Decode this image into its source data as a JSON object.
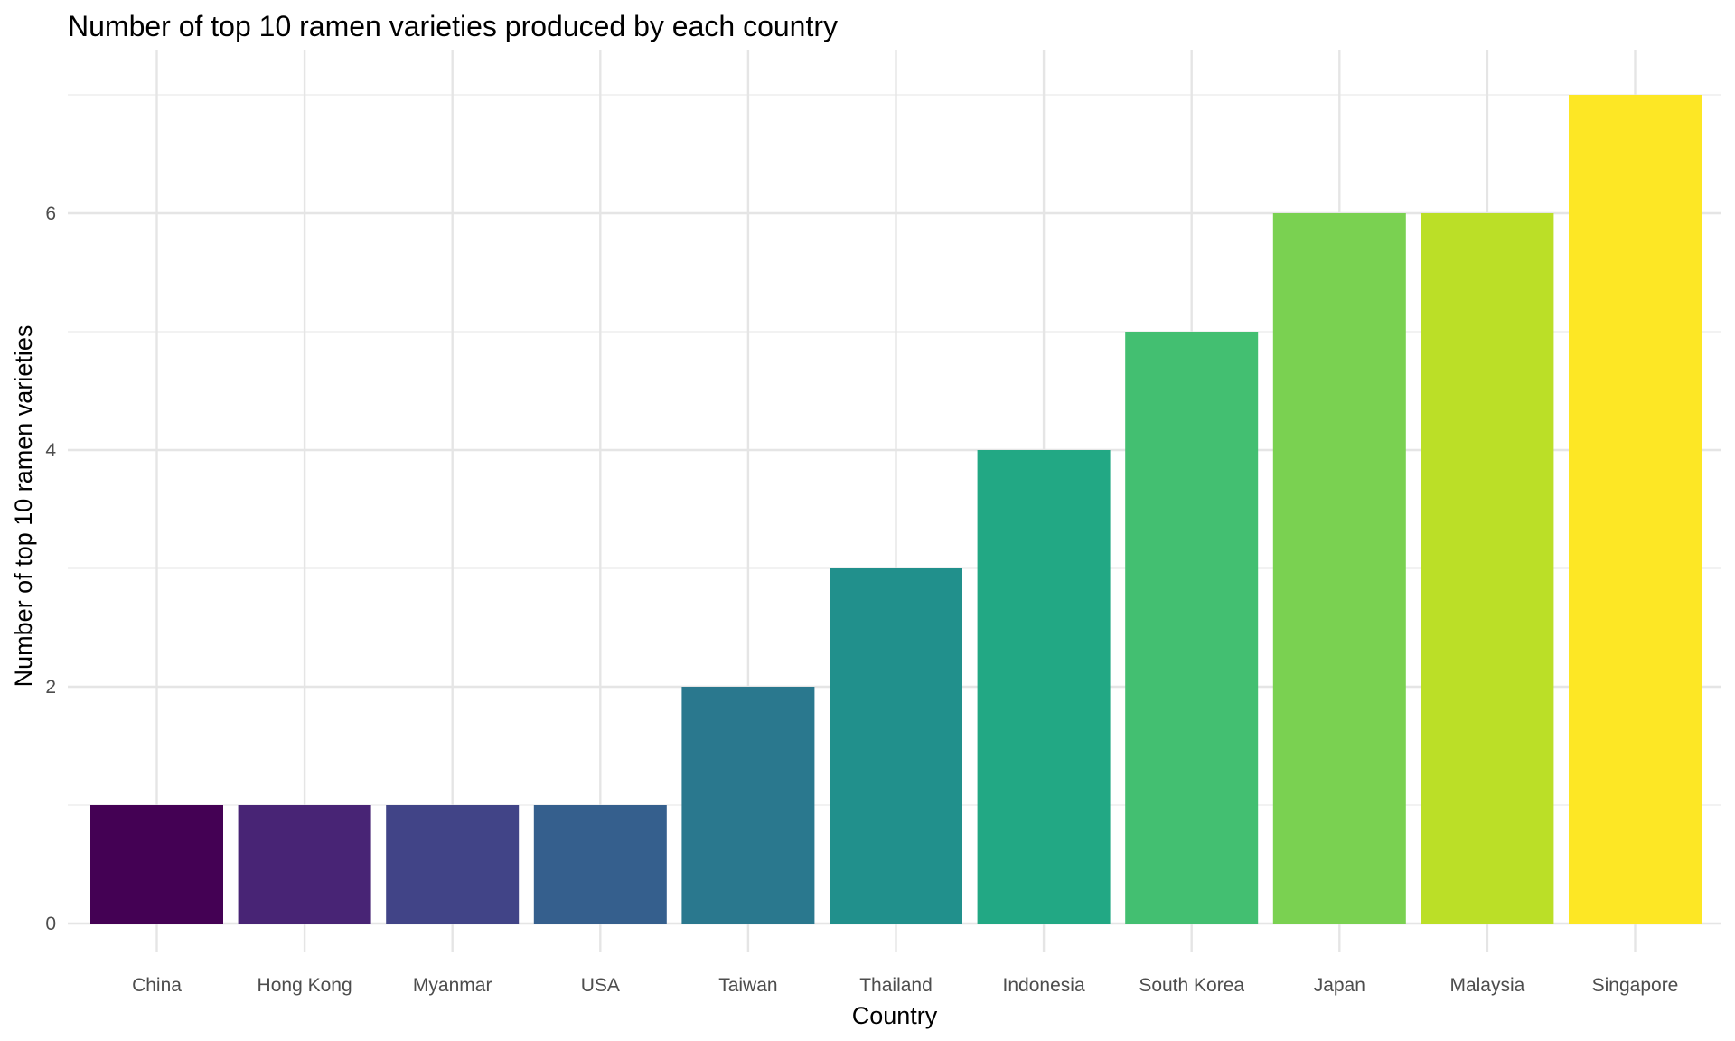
{
  "chart_data": {
    "type": "bar",
    "title": "Number of top 10 ramen varieties produced by each country",
    "xlabel": "Country",
    "ylabel": "Number of top 10 ramen varieties",
    "categories": [
      "China",
      "Hong Kong",
      "Myanmar",
      "USA",
      "Taiwan",
      "Thailand",
      "Indonesia",
      "South Korea",
      "Japan",
      "Malaysia",
      "Singapore"
    ],
    "values": [
      1,
      1,
      1,
      1,
      2,
      3,
      4,
      5,
      6,
      6,
      7
    ],
    "colors": [
      "#440154",
      "#482475",
      "#414487",
      "#355F8D",
      "#2A788E",
      "#21908C",
      "#22A884",
      "#43BF71",
      "#7AD151",
      "#BBDF27",
      "#FDE725"
    ],
    "ylim": [
      0,
      7
    ],
    "yticks": [
      0,
      2,
      4,
      6
    ],
    "grid": true,
    "legend": "none"
  }
}
